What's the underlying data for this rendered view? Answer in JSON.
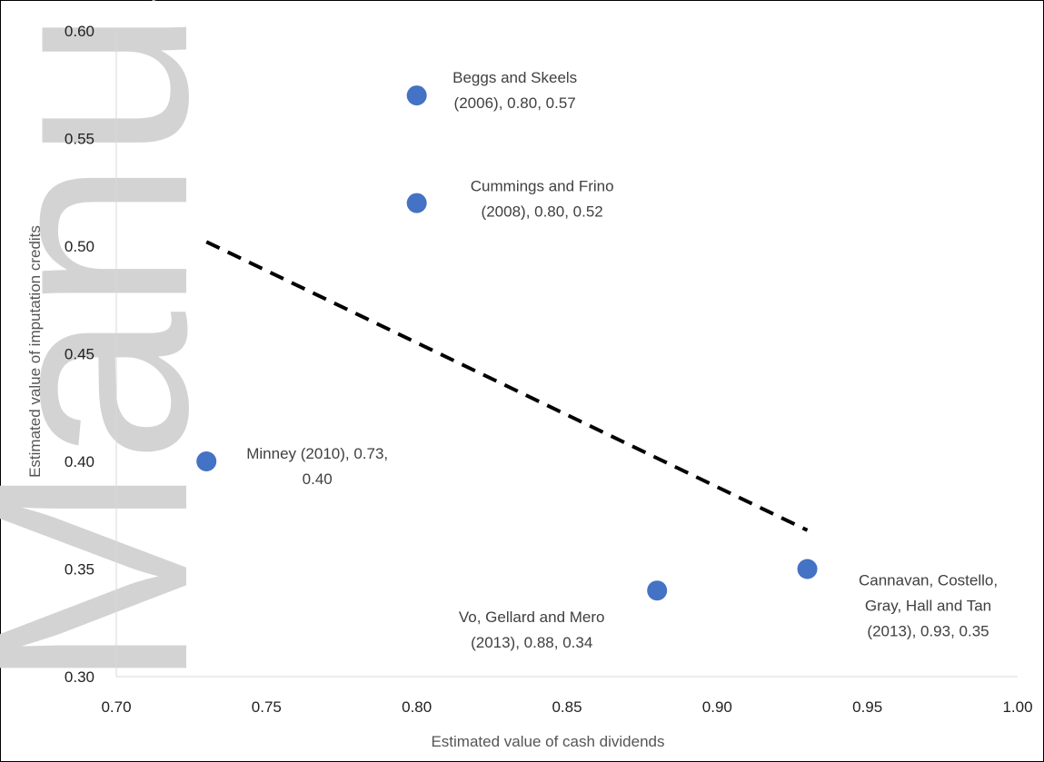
{
  "watermark": "Manuscript",
  "chart_data": {
    "type": "scatter",
    "title": "",
    "xlabel": "Estimated value of cash dividends",
    "ylabel": "Estimated value of imputation credits",
    "xlim": [
      0.7,
      1.0
    ],
    "ylim": [
      0.3,
      0.6
    ],
    "xticks": [
      "0.70",
      "0.75",
      "0.80",
      "0.85",
      "0.90",
      "0.95",
      "1.00"
    ],
    "yticks": [
      "0.30",
      "0.35",
      "0.40",
      "0.45",
      "0.50",
      "0.55",
      "0.60"
    ],
    "grid": false,
    "marker_color": "#4472C4",
    "points": [
      {
        "x": 0.8,
        "y": 0.57,
        "label_lines": [
          "Beggs and Skeels",
          "(2006), 0.80, 0.57"
        ]
      },
      {
        "x": 0.8,
        "y": 0.52,
        "label_lines": [
          "Cummings and Frino",
          "(2008), 0.80, 0.52"
        ]
      },
      {
        "x": 0.73,
        "y": 0.4,
        "label_lines": [
          "Minney (2010), 0.73,",
          "0.40"
        ]
      },
      {
        "x": 0.88,
        "y": 0.34,
        "label_lines": [
          "Vo, Gellard and Mero",
          "(2013), 0.88, 0.34"
        ]
      },
      {
        "x": 0.93,
        "y": 0.35,
        "label_lines": [
          "Cannavan, Costello,",
          "Gray, Hall and Tan",
          "(2013), 0.93, 0.35"
        ]
      }
    ],
    "trendline": {
      "style": "dashed",
      "color": "#000000",
      "x": [
        0.73,
        0.93
      ],
      "y": [
        0.502,
        0.368
      ]
    }
  }
}
